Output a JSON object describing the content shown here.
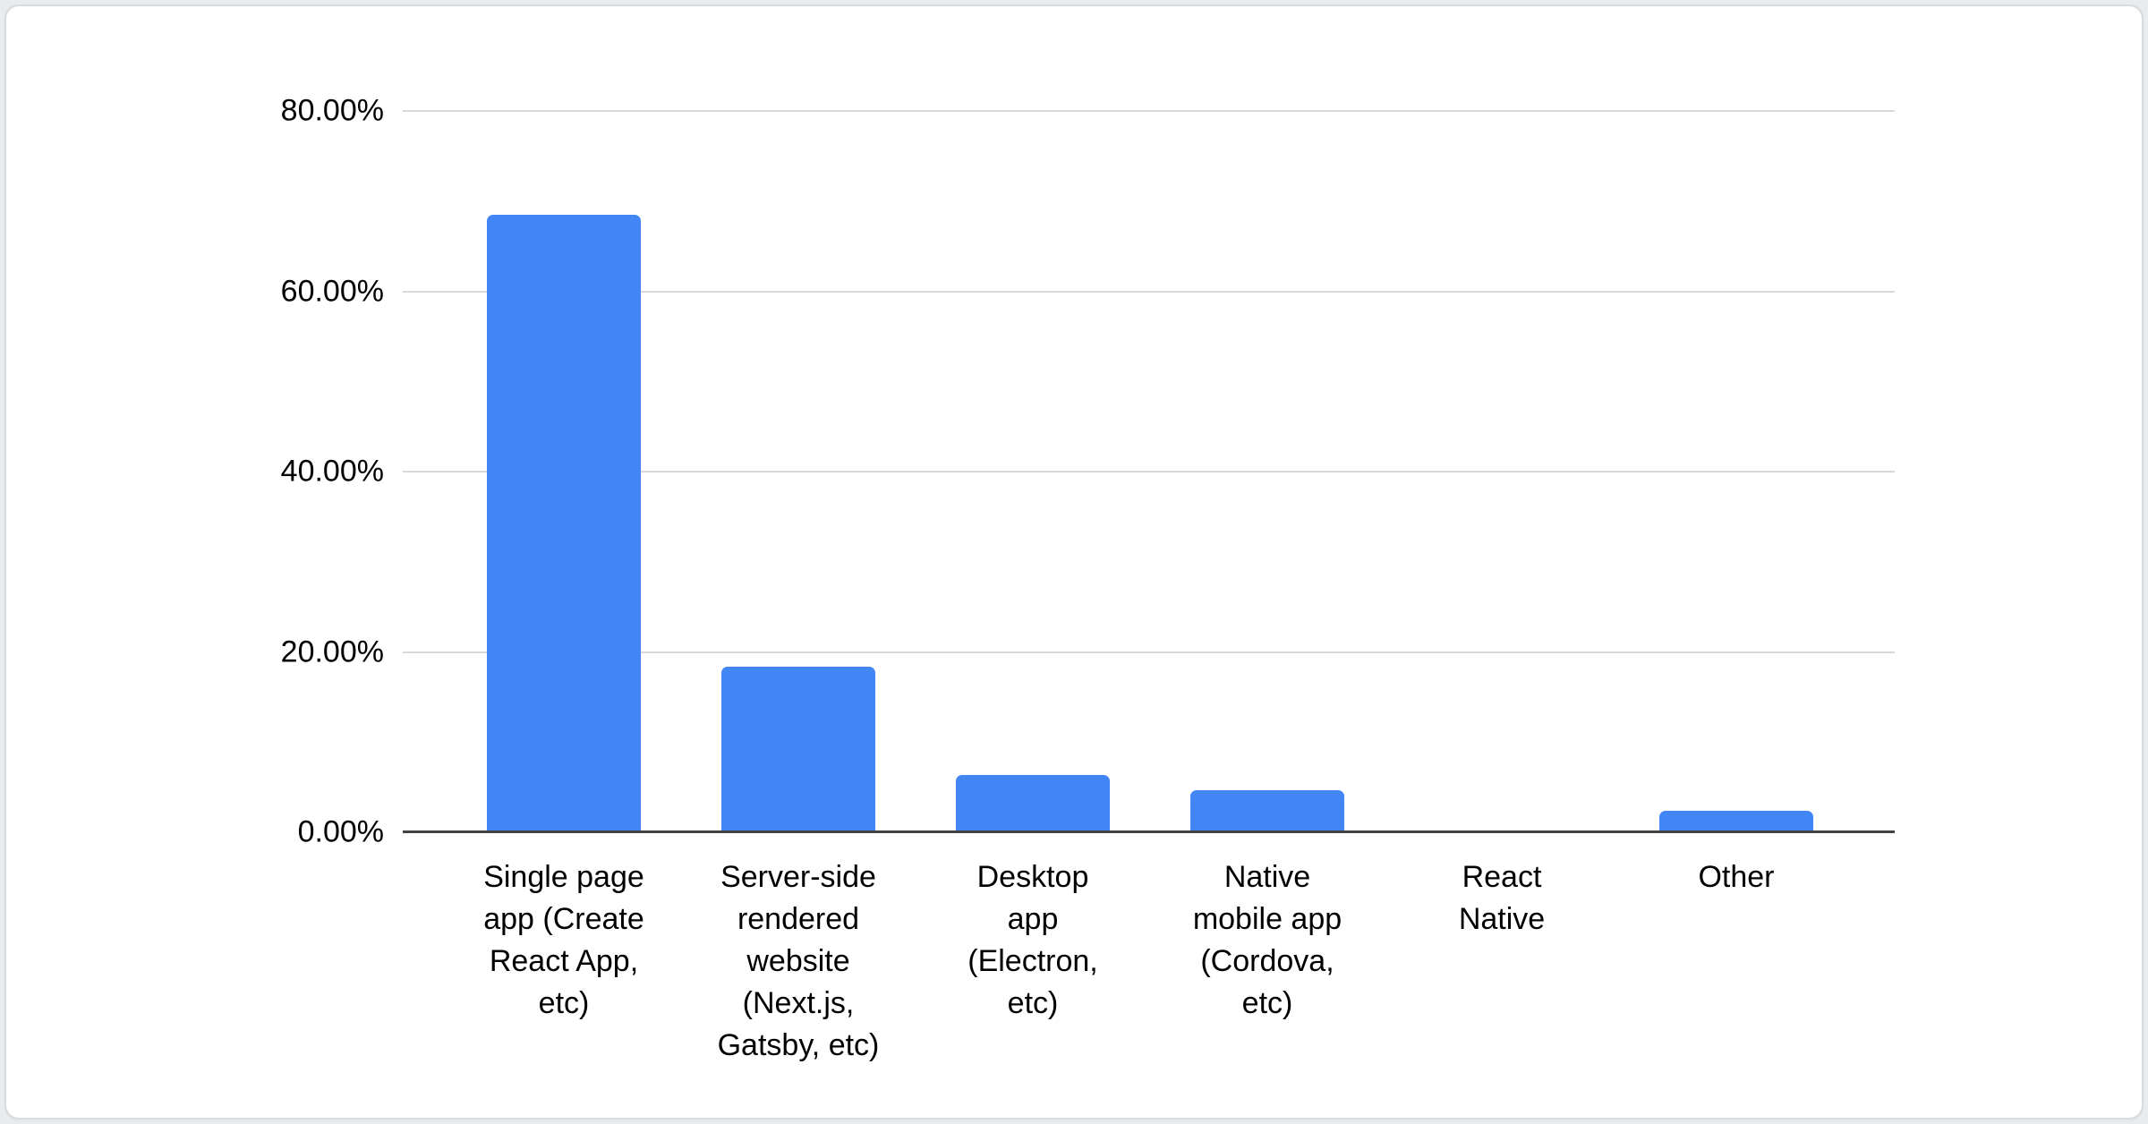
{
  "page": {
    "background_color": "#e9ebee",
    "card_background": "#ffffff",
    "card_border_color": "#d7dade"
  },
  "chart_data": {
    "type": "bar",
    "title": "",
    "xlabel": "",
    "ylabel": "",
    "legend": "none",
    "grid": true,
    "ylim": [
      0,
      80
    ],
    "bar_color": "#4285f4",
    "gridline_color": "#d9d9d9",
    "axis_color": "#424242",
    "label_color": "#000000",
    "categories": [
      "Single page app (Create React App, etc)",
      "Server-side rendered website (Next.js, Gatsby, etc)",
      "Desktop app (Electron, etc)",
      "Native mobile app (Cordova, etc)",
      "React Native",
      "Other"
    ],
    "category_display_lines": [
      [
        "Single page",
        "app (Create",
        "React App,",
        "etc)"
      ],
      [
        "Server-side",
        "rendered",
        "website",
        "(Next.js,",
        "Gatsby, etc)"
      ],
      [
        "Desktop",
        "app",
        "(Electron,",
        "etc)"
      ],
      [
        "Native",
        "mobile app",
        "(Cordova,",
        "etc)"
      ],
      [
        "React",
        "Native"
      ],
      [
        "Other"
      ]
    ],
    "values": [
      68.5,
      18.4,
      6.4,
      4.7,
      0,
      2.4
    ],
    "yticks": [
      {
        "label": "80.00%",
        "value": 80
      },
      {
        "label": "60.00%",
        "value": 60
      },
      {
        "label": "40.00%",
        "value": 40
      },
      {
        "label": "20.00%",
        "value": 20
      },
      {
        "label": "0.00%",
        "value": 0
      }
    ]
  }
}
